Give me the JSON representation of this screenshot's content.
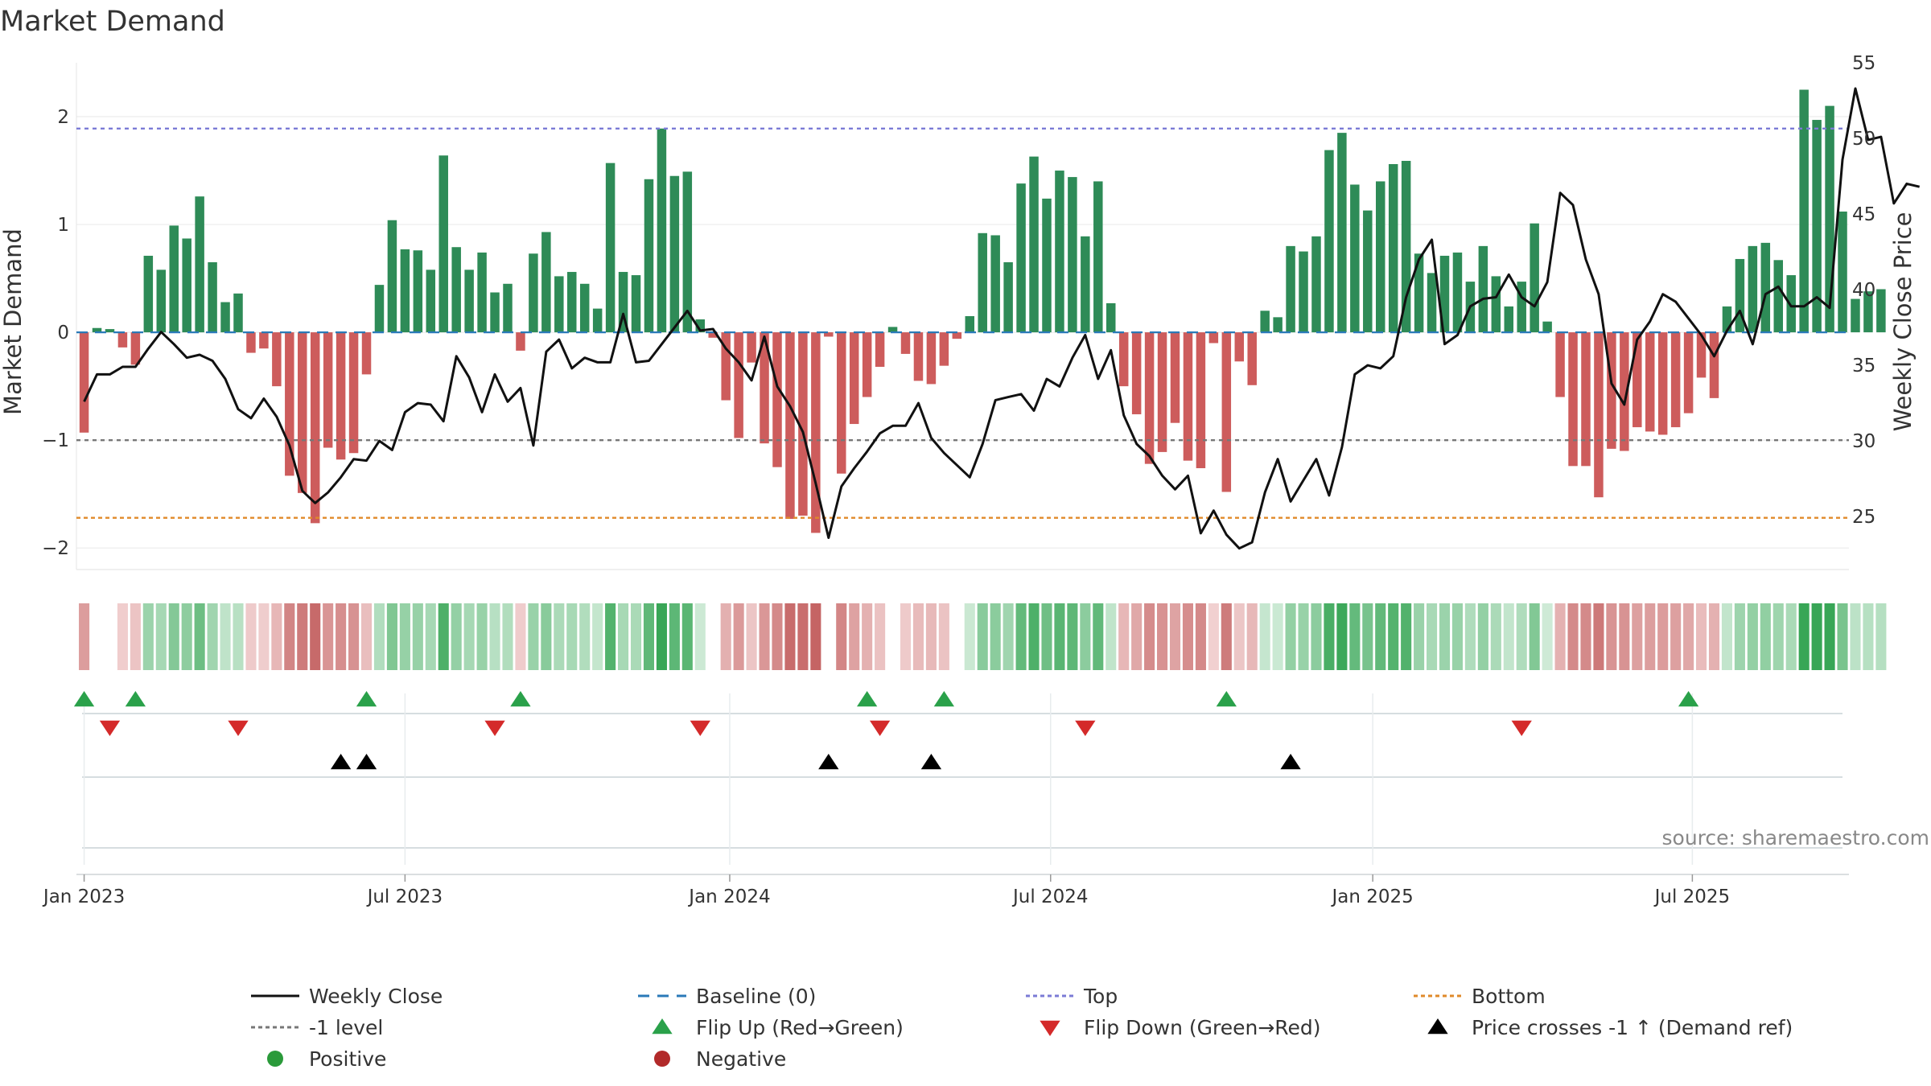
{
  "title": "Market Demand",
  "source": "source: sharemaestro.com",
  "chart_data": {
    "type": "bar",
    "title": "Market Demand",
    "xlabel": "",
    "ylabel": "Market Demand",
    "ylabel_right": "Weekly Close Price",
    "ylim": [
      -2.2,
      2.5
    ],
    "ylim_right": [
      21.5,
      55
    ],
    "yticks": [
      -2,
      -1,
      0,
      1,
      2
    ],
    "yticks_right": [
      25,
      30,
      35,
      40,
      45,
      50,
      55
    ],
    "x_range_weeks": [
      -0.6,
      137.5
    ],
    "xticks": [
      {
        "label": "Jan 2023",
        "week": 0
      },
      {
        "label": "Jul 2023",
        "week": 25
      },
      {
        "label": "Jan 2024",
        "week": 50.3
      },
      {
        "label": "Jul 2024",
        "week": 75.3
      },
      {
        "label": "Jan 2025",
        "week": 100.4
      },
      {
        "label": "Jul 2025",
        "week": 125.3
      }
    ],
    "reference_lines": [
      {
        "name": "Top",
        "value": 1.89,
        "color": "#7b7bd6"
      },
      {
        "name": "-1 level",
        "value": -1.0,
        "color": "#777777"
      },
      {
        "name": "Bottom",
        "value": -1.72,
        "color": "#e08a2a"
      },
      {
        "name": "Baseline (0)",
        "value": 0,
        "color": "#2a7ab8"
      }
    ],
    "series": [
      {
        "name": "Market Demand",
        "axis": "left",
        "values": [
          -0.93,
          0.04,
          0.03,
          -0.14,
          -0.3,
          0.71,
          0.58,
          0.99,
          0.87,
          1.26,
          0.65,
          0.28,
          0.36,
          -0.19,
          -0.15,
          -0.5,
          -1.33,
          -1.49,
          -1.77,
          -1.07,
          -1.18,
          -1.12,
          -0.39,
          0.44,
          1.04,
          0.77,
          0.76,
          0.58,
          1.64,
          0.79,
          0.58,
          0.74,
          0.37,
          0.45,
          -0.17,
          0.73,
          0.93,
          0.52,
          0.56,
          0.45,
          0.22,
          1.57,
          0.56,
          0.53,
          1.42,
          1.89,
          1.45,
          1.49,
          0.12,
          -0.05,
          -0.63,
          -0.98,
          -0.28,
          -1.03,
          -1.25,
          -1.73,
          -1.7,
          -1.86,
          -0.04,
          -1.31,
          -0.85,
          -0.6,
          -0.32,
          0.05,
          -0.2,
          -0.45,
          -0.48,
          -0.31,
          -0.06,
          0.15,
          0.92,
          0.9,
          0.65,
          1.38,
          1.63,
          1.24,
          1.5,
          1.44,
          0.89,
          1.4,
          0.27,
          -0.5,
          -0.76,
          -1.22,
          -1.11,
          -0.84,
          -1.19,
          -1.26,
          -0.1,
          -1.48,
          -0.27,
          -0.49,
          0.2,
          0.14,
          0.8,
          0.75,
          0.89,
          1.69,
          1.85,
          1.37,
          1.13,
          1.4,
          1.56,
          1.59,
          0.73,
          0.55,
          0.71,
          0.74,
          0.47,
          0.8,
          0.52,
          0.24,
          0.47,
          1.01,
          0.1,
          -0.6,
          -1.24,
          -1.24,
          -1.53,
          -1.08,
          -1.1,
          -0.88,
          -0.92,
          -0.95,
          -0.88,
          -0.75,
          -0.42,
          -0.61,
          0.24,
          0.68,
          0.8,
          0.83,
          0.67,
          0.53,
          2.25,
          1.97,
          2.1,
          1.12,
          0.31,
          0.38,
          0.4
        ]
      },
      {
        "name": "Weekly Close",
        "axis": "right",
        "values": [
          32.6,
          34.4,
          34.4,
          34.9,
          34.9,
          36.1,
          37.2,
          36.4,
          35.5,
          35.7,
          35.3,
          34.1,
          32.1,
          31.5,
          32.8,
          31.6,
          29.7,
          26.7,
          25.9,
          26.6,
          27.6,
          28.8,
          28.7,
          30.0,
          29.4,
          31.9,
          32.5,
          32.4,
          31.3,
          35.6,
          34.2,
          31.9,
          34.4,
          32.6,
          33.5,
          29.7,
          35.9,
          36.7,
          34.8,
          35.5,
          35.2,
          35.2,
          38.4,
          35.2,
          35.3,
          36.4,
          37.5,
          38.6,
          37.3,
          37.4,
          36.1,
          35.2,
          34.0,
          36.9,
          33.6,
          32.3,
          30.6,
          27.2,
          23.6,
          27.0,
          28.2,
          29.3,
          30.5,
          31.0,
          31.0,
          32.5,
          30.2,
          29.2,
          28.4,
          27.6,
          29.8,
          32.7,
          32.9,
          33.1,
          32.0,
          34.1,
          33.6,
          35.5,
          37.0,
          34.1,
          36.0,
          31.7,
          29.8,
          29.0,
          27.7,
          26.8,
          27.7,
          23.9,
          25.4,
          23.8,
          22.9,
          23.3,
          26.6,
          28.8,
          26.0,
          27.4,
          28.8,
          26.4,
          29.6,
          34.4,
          35.0,
          34.8,
          35.6,
          39.5,
          42.0,
          43.3,
          36.4,
          37.0,
          38.9,
          39.4,
          39.5,
          41.0,
          39.5,
          38.9,
          40.5,
          46.4,
          45.6,
          42.0,
          39.7,
          33.8,
          32.4,
          36.7,
          37.9,
          39.7,
          39.2,
          38.1,
          37.0,
          35.6,
          37.3,
          38.6,
          36.4,
          39.7,
          40.2,
          38.9,
          38.9,
          39.5,
          38.8,
          48.6,
          53.3,
          49.9,
          50.1,
          45.7,
          47.0,
          46.8
        ]
      }
    ],
    "band_strip": "color-intensity of Market Demand per week (green positive, red negative)",
    "signals": {
      "flip_up_weeks": [
        0,
        4,
        22,
        34,
        61,
        67,
        89,
        125
      ],
      "flip_down_weeks": [
        2,
        12,
        32,
        48,
        62,
        78,
        112
      ],
      "price_crosses_weeks": [
        20,
        22,
        58,
        66,
        94
      ]
    },
    "legend": [
      {
        "label": "Weekly Close",
        "icon": "solid-line-icon",
        "color": "#111111"
      },
      {
        "label": "Baseline (0)",
        "icon": "dashed-line-icon",
        "color": "#2a7ab8"
      },
      {
        "label": "Top",
        "icon": "dotted-line-icon",
        "color": "#7b7bd6"
      },
      {
        "label": "Bottom",
        "icon": "dotted-line-icon",
        "color": "#e08a2a"
      },
      {
        "label": "-1 level",
        "icon": "dotted-line-icon",
        "color": "#777777"
      },
      {
        "label": "Flip Up (Red→Green)",
        "icon": "triangle-up-icon",
        "color": "#2aa14a"
      },
      {
        "label": "Flip Down (Green→Red)",
        "icon": "triangle-down-icon",
        "color": "#d42a2a"
      },
      {
        "label": "Price crosses -1 ↑ (Demand ref)",
        "icon": "triangle-up-icon",
        "color": "#000000"
      },
      {
        "label": "Positive",
        "icon": "circle-icon",
        "color": "#2a9a3a"
      },
      {
        "label": "Negative",
        "icon": "circle-icon",
        "color": "#b22a2a"
      }
    ],
    "colors": {
      "positive_bar": "#2e8b57",
      "negative_bar": "#cd5c5c",
      "price_line": "#111111"
    }
  }
}
